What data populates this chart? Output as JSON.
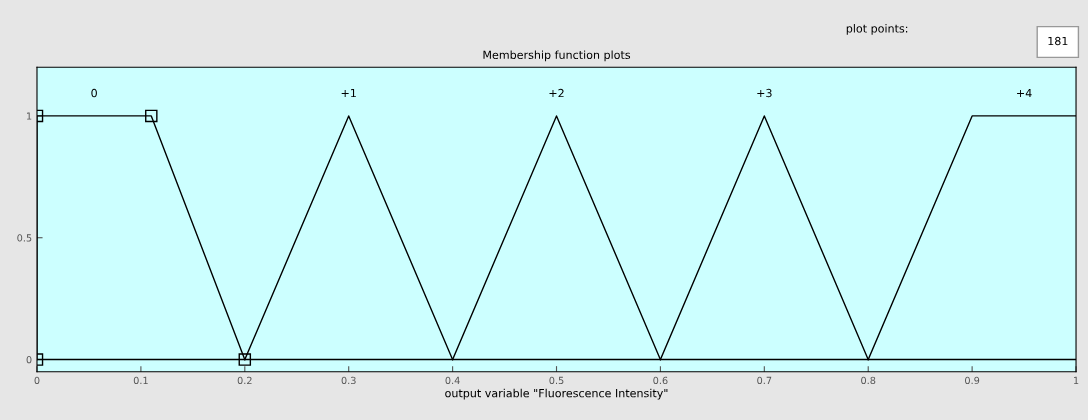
{
  "chart_data": {
    "type": "line",
    "title": "Membership function plots",
    "xlabel": "output variable \"Fluorescence Intensity\"",
    "xlim": [
      0,
      1
    ],
    "ylim": [
      -0.05,
      1.2
    ],
    "xticks": [
      0,
      0.1,
      0.2,
      0.3,
      0.4,
      0.5,
      0.6,
      0.7,
      0.8,
      0.9,
      1
    ],
    "yticks": [
      0,
      0.5,
      1
    ],
    "grid": false,
    "legend": false,
    "series": [
      {
        "name": "0",
        "color": "#000000",
        "x": [
          0,
          0,
          0.11,
          0.2
        ],
        "values": [
          0,
          1,
          1,
          0
        ],
        "marker": "square"
      },
      {
        "name": "+1",
        "color": "#000000",
        "x": [
          0.2,
          0.3,
          0.4
        ],
        "values": [
          0,
          1,
          0
        ]
      },
      {
        "name": "+2",
        "color": "#000000",
        "x": [
          0.4,
          0.5,
          0.6
        ],
        "values": [
          0,
          1,
          0
        ]
      },
      {
        "name": "+3",
        "color": "#000000",
        "x": [
          0.6,
          0.7,
          0.8
        ],
        "values": [
          0,
          1,
          0
        ]
      },
      {
        "name": "+4",
        "color": "#000000",
        "x": [
          0.8,
          0.9,
          1
        ],
        "values": [
          0,
          1,
          1
        ]
      }
    ],
    "ref_lines": [
      {
        "axis": "y",
        "value": 0,
        "color": "#000000"
      }
    ],
    "annotations": [
      "plot points:",
      "181"
    ]
  }
}
